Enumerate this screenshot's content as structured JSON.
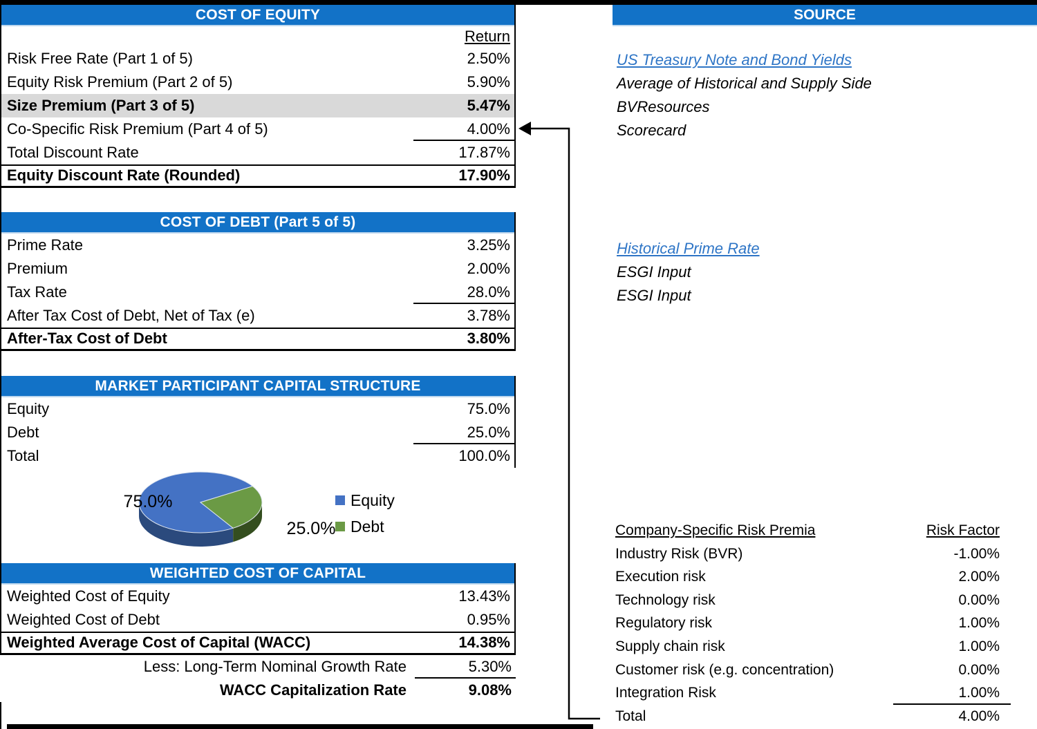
{
  "colors": {
    "header_bar": "#1272C7",
    "header_bar_underline": "#BDD7EE",
    "hyperlink": "#2E75C6",
    "highlight_row": "#D9D9D9",
    "pie_equity": "#4472C4",
    "pie_equity_side": "#2B4A7D",
    "pie_debt": "#6B9A45",
    "pie_debt_side": "#344E1F"
  },
  "cost_of_equity": {
    "title": "COST OF EQUITY",
    "col_header": "Return",
    "rows": [
      {
        "label": "Risk Free Rate (Part 1 of 5)",
        "value": "2.50%"
      },
      {
        "label": "Equity Risk Premium (Part 2 of 5)",
        "value": "5.90%"
      },
      {
        "label": "Size Premium (Part 3 of 5)",
        "value": "5.47%",
        "bold": true,
        "highlight": true
      },
      {
        "label": "Co-Specific Risk Premium (Part 4 of 5)",
        "value": "4.00%",
        "sum": true
      },
      {
        "label": "Total Discount Rate",
        "value": "17.87%"
      },
      {
        "label": "Equity Discount Rate (Rounded)",
        "value": "17.90%",
        "bold": true,
        "boxed": true
      }
    ]
  },
  "cost_of_debt": {
    "title": "COST OF DEBT (Part 5 of 5)",
    "rows": [
      {
        "label": "Prime Rate",
        "value": "3.25%"
      },
      {
        "label": "Premium",
        "value": "2.00%"
      },
      {
        "label": "Tax Rate",
        "value": "28.0%",
        "sum": true
      },
      {
        "label": "After Tax Cost of Debt, Net of Tax (e)",
        "value": "3.78%"
      },
      {
        "label": "After-Tax Cost of Debt",
        "value": "3.80%",
        "bold": true,
        "boxed": true
      }
    ]
  },
  "capital_structure": {
    "title": "MARKET PARTICIPANT CAPITAL STRUCTURE",
    "rows": [
      {
        "label": "Equity",
        "value": "75.0%"
      },
      {
        "label": "Debt",
        "value": "25.0%",
        "sum": true
      },
      {
        "label": "Total",
        "value": "100.0%"
      }
    ]
  },
  "wacc": {
    "title": "WEIGHTED COST OF CAPITAL",
    "rows": [
      {
        "label": "Weighted Cost of Equity",
        "value": "13.43%"
      },
      {
        "label": "Weighted Cost of Debt",
        "value": "0.95%"
      },
      {
        "label": "Weighted Average Cost of Capital (WACC)",
        "value": "14.38%",
        "bold": true,
        "boxed": true
      }
    ],
    "extra_rows": [
      {
        "label": "Less: Long-Term Nominal Growth Rate",
        "value": "5.30%",
        "label_right": true,
        "sum": true
      },
      {
        "label": "WACC Capitalization Rate",
        "value": "9.08%",
        "bold": true,
        "label_right": true
      }
    ]
  },
  "source": {
    "title": "SOURCE",
    "equity_sources": [
      {
        "text": "US Treasury Note and Bond Yields",
        "link": true
      },
      {
        "text": "Average of Historical and Supply Side"
      },
      {
        "text": "BVResources"
      },
      {
        "text": "Scorecard"
      }
    ],
    "debt_sources": [
      {
        "text": "Historical Prime Rate",
        "link": true
      },
      {
        "text": "ESGI Input"
      },
      {
        "text": "ESGI Input"
      }
    ]
  },
  "risk_premia": {
    "col_header_label": "Company-Specific Risk Premia",
    "col_header_value": "Risk Factor",
    "rows": [
      {
        "label": "Industry Risk (BVR)",
        "value": "-1.00%"
      },
      {
        "label": "Execution risk",
        "value": "2.00%"
      },
      {
        "label": "Technology risk",
        "value": "0.00%"
      },
      {
        "label": "Regulatory risk",
        "value": "1.00%"
      },
      {
        "label": "Supply chain risk",
        "value": "1.00%"
      },
      {
        "label": "Customer risk (e.g. concentration)",
        "value": "0.00%"
      },
      {
        "label": "Integration Risk",
        "value": "1.00%",
        "sum": true
      },
      {
        "label": "Total",
        "value": "4.00%"
      }
    ]
  },
  "chart_data": {
    "type": "pie",
    "style": "3d",
    "labels": [
      "Equity",
      "Debt"
    ],
    "values": [
      75.0,
      25.0
    ],
    "value_labels": [
      "75.0%",
      "25.0%"
    ],
    "colors": [
      "#4472C4",
      "#6B9A45"
    ],
    "legend_position": "right",
    "title": ""
  }
}
